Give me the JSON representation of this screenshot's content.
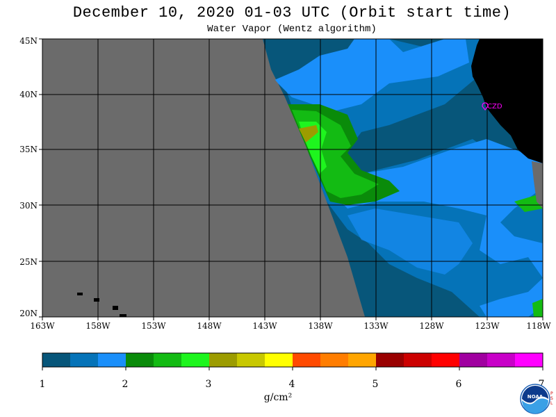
{
  "title": "December 10, 2020  01-03 UTC  (Orbit start time)",
  "subtitle": "Water Vapor (Wentz algorithm)",
  "lat_labels": [
    "45N",
    "40N",
    "35N",
    "30N",
    "25N",
    "20N"
  ],
  "lon_labels": [
    "163W",
    "158W",
    "153W",
    "148W",
    "143W",
    "138W",
    "133W",
    "128W",
    "123W",
    "118W"
  ],
  "station_label": "CZD",
  "colorbar": {
    "colors": [
      "#07567a",
      "#0573b8",
      "#1a8ffa",
      "#0a8b0a",
      "#13bb13",
      "#1ef51e",
      "#9c9c00",
      "#c8c800",
      "#ffff00",
      "#ff4a00",
      "#ff7d00",
      "#ffa500",
      "#990000",
      "#cc0000",
      "#ff0000",
      "#a000a0",
      "#c800c8",
      "#ff00ff"
    ],
    "tick_labels": [
      "1",
      "2",
      "3",
      "4",
      "5",
      "6",
      "7"
    ],
    "units": "g/cm²"
  },
  "logo": {
    "text": "NOAA",
    "side_text": "P S L"
  },
  "colors": {
    "no_data": "#6b6b6b",
    "land": "#000000",
    "station": "#ff00ff"
  }
}
